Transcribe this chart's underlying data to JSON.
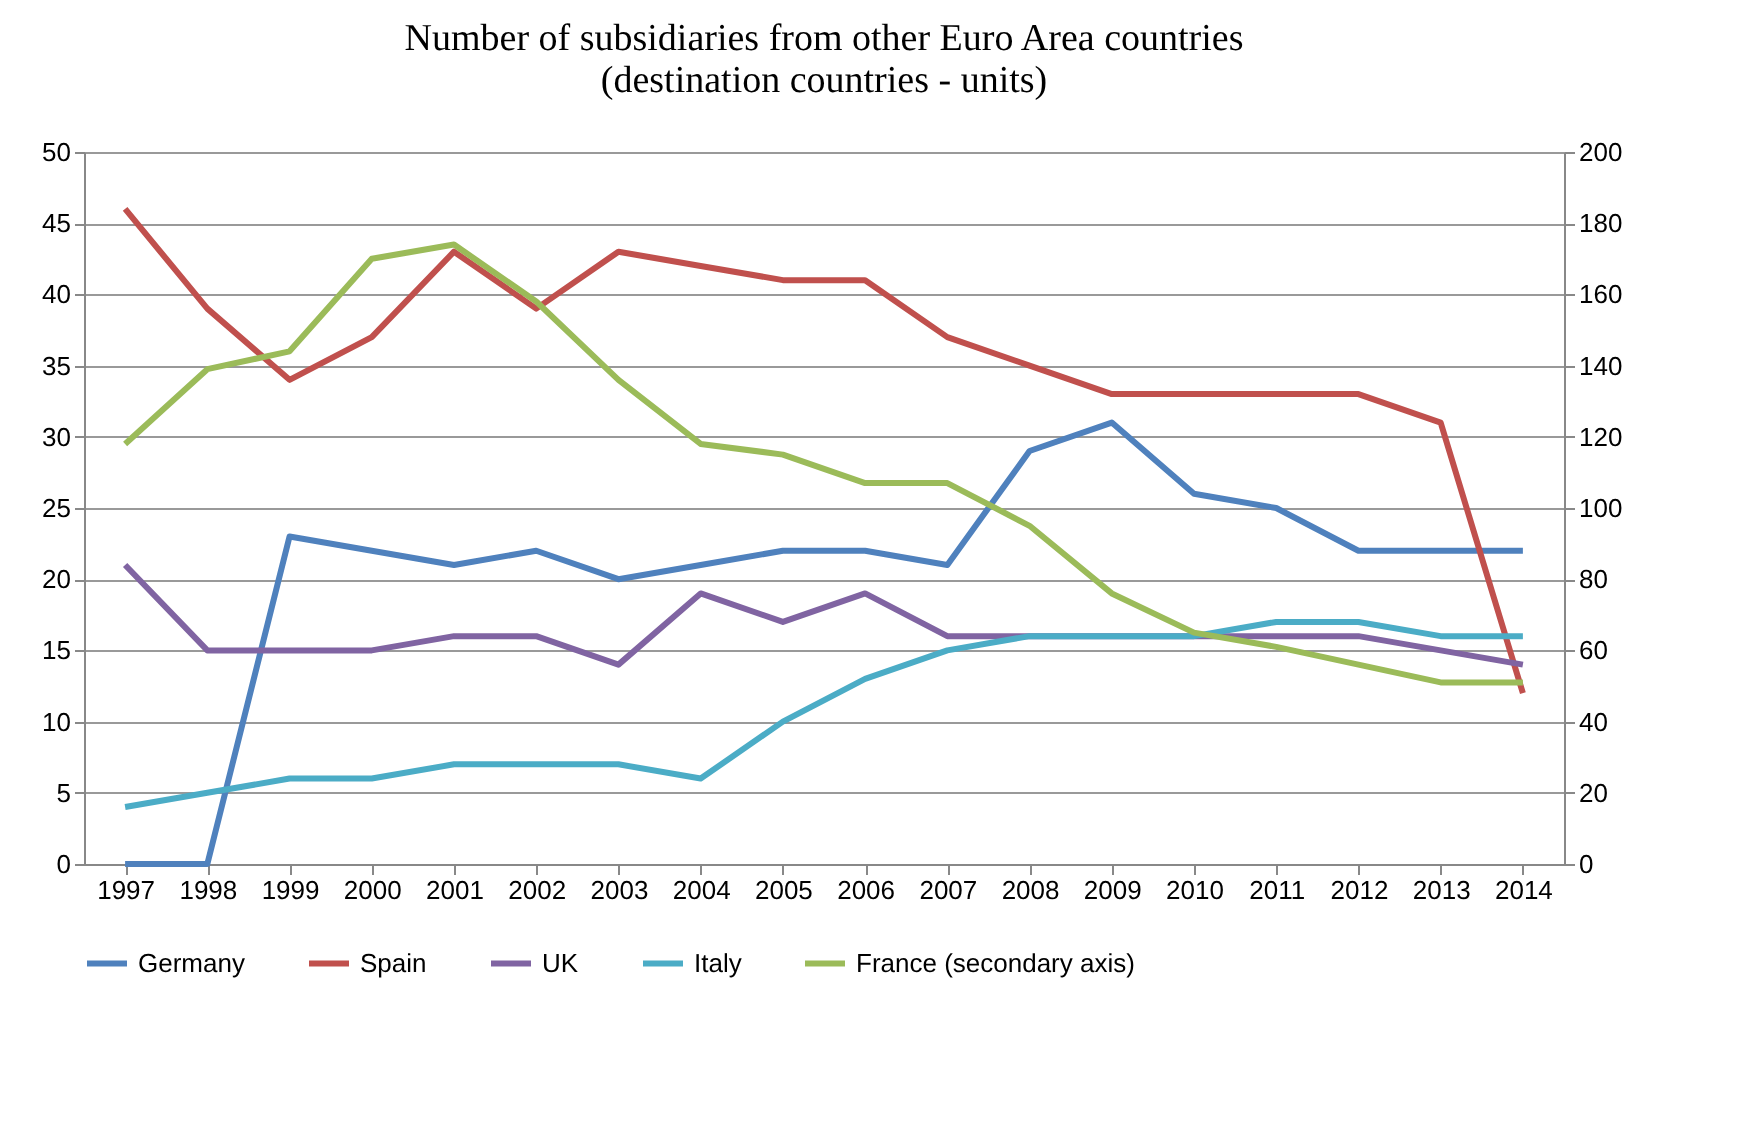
{
  "chart_data": {
    "type": "line",
    "title": "Number of subsidiaries  from other Euro Area countries\n(destination countries - units)",
    "categories": [
      "1997",
      "1998",
      "1999",
      "2000",
      "2001",
      "2002",
      "2003",
      "2004",
      "2005",
      "2006",
      "2007",
      "2008",
      "2009",
      "2010",
      "2011",
      "2012",
      "2013",
      "2014"
    ],
    "series": [
      {
        "name": "Germany",
        "color": "#4f81bd",
        "values": [
          0,
          0,
          23,
          22,
          21,
          22,
          20,
          21,
          22,
          22,
          21,
          29,
          31,
          26,
          25,
          22,
          22,
          22
        ]
      },
      {
        "name": "Spain",
        "color": "#c0504d",
        "values": [
          46,
          39,
          34,
          37,
          43,
          39,
          43,
          42,
          41,
          41,
          37,
          35,
          33,
          33,
          33,
          33,
          31,
          12
        ]
      },
      {
        "name": "UK",
        "color": "#8064a2",
        "values": [
          21,
          15,
          15,
          15,
          16,
          16,
          14,
          19,
          17,
          19,
          16,
          16,
          16,
          16,
          16,
          16,
          15,
          14
        ]
      },
      {
        "name": "Italy",
        "color": "#4bacc6",
        "values": [
          4,
          5,
          6,
          6,
          7,
          7,
          7,
          6,
          10,
          13,
          15,
          16,
          16,
          16,
          17,
          17,
          16,
          16
        ]
      },
      {
        "name": "France (secondary axis)",
        "color": "#9bbb59",
        "axis": "y2",
        "values": [
          118,
          139,
          144,
          170,
          174,
          158,
          136,
          118,
          115,
          107,
          107,
          95,
          76,
          65,
          61,
          56,
          51,
          51
        ]
      }
    ],
    "ylim": [
      0,
      50
    ],
    "yticks": [
      0,
      5,
      10,
      15,
      20,
      25,
      30,
      35,
      40,
      45,
      50
    ],
    "y2lim": [
      0,
      200
    ],
    "y2ticks": [
      0,
      20,
      40,
      60,
      80,
      100,
      120,
      140,
      160,
      180,
      200
    ],
    "grid": "y",
    "legend": "bottom",
    "marker": "none",
    "line_style": "solid"
  }
}
